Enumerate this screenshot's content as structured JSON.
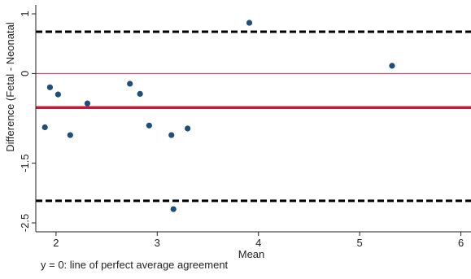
{
  "chart_data": {
    "type": "scatter",
    "xlabel": "Mean",
    "ylabel": "Difference (Fetal - Neonatal",
    "xlim": [
      1.8,
      6.1
    ],
    "ylim": [
      -2.65,
      1.15
    ],
    "x_ticks": [
      2,
      3,
      4,
      5,
      6
    ],
    "y_ticks": [
      1,
      0,
      -1.5,
      -2.5
    ],
    "y_tick_labels": [
      "1",
      "0",
      "-1.5",
      "-2.5"
    ],
    "grid": false,
    "reference_lines": [
      {
        "y": 0.7,
        "style": "dashed",
        "color": "#000000"
      },
      {
        "y": 0,
        "style": "solid-thin",
        "color": "#c0304f"
      },
      {
        "y": -0.57,
        "style": "solid-thick",
        "color": "#c01a3c"
      },
      {
        "y": -2.13,
        "style": "dashed",
        "color": "#000000"
      }
    ],
    "point_color": "#1f4e79",
    "points": [
      {
        "x": 1.89,
        "y": -0.9
      },
      {
        "x": 1.94,
        "y": -0.23
      },
      {
        "x": 2.02,
        "y": -0.35
      },
      {
        "x": 2.14,
        "y": -1.03
      },
      {
        "x": 2.31,
        "y": -0.5
      },
      {
        "x": 2.73,
        "y": -0.17
      },
      {
        "x": 2.83,
        "y": -0.34
      },
      {
        "x": 2.92,
        "y": -0.87
      },
      {
        "x": 3.14,
        "y": -1.03
      },
      {
        "x": 3.16,
        "y": -2.27
      },
      {
        "x": 3.3,
        "y": -0.92
      },
      {
        "x": 3.91,
        "y": 0.85
      },
      {
        "x": 5.32,
        "y": 0.13
      }
    ]
  },
  "note": "y = 0: line of perfect average agreement"
}
